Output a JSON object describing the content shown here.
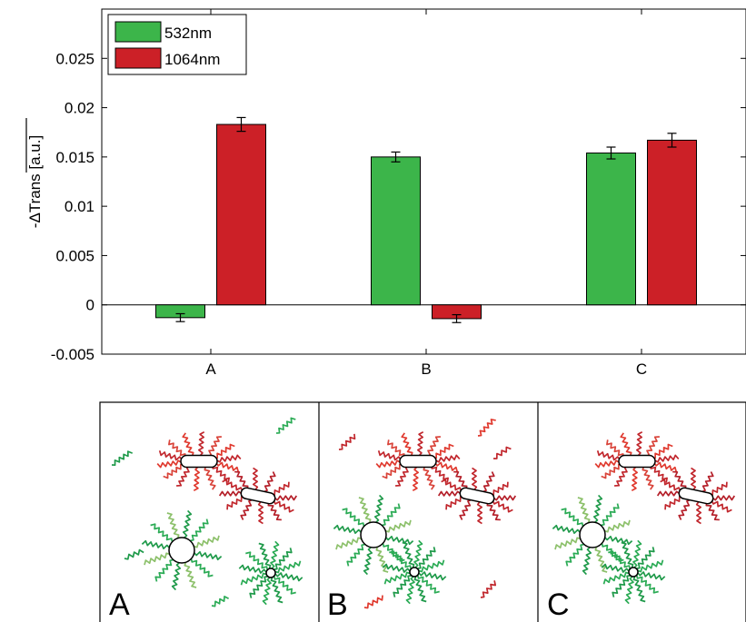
{
  "chart_data": {
    "type": "bar",
    "categories": [
      "A",
      "B",
      "C"
    ],
    "series": [
      {
        "name": "532nm",
        "color": "#3cb54a",
        "values": [
          -0.0013,
          0.015,
          0.0154
        ],
        "errors": [
          0.0004,
          0.0005,
          0.0006
        ]
      },
      {
        "name": "1064nm",
        "color": "#cc2027",
        "values": [
          0.0183,
          -0.0014,
          0.0167
        ],
        "errors": [
          0.0007,
          0.0004,
          0.0007
        ]
      }
    ],
    "ylabel": "-ΔTrans [a.u.]",
    "ylim": [
      -0.005,
      0.03
    ],
    "yticks": [
      "-0.005",
      "0",
      "0.005",
      "0.01",
      "0.015",
      "0.02",
      "0.025"
    ],
    "grid": false,
    "legend_position": "top-left"
  },
  "panels": [
    {
      "label": "A",
      "spheres": "green",
      "rods": "red",
      "free_ligands": "green"
    },
    {
      "label": "B",
      "spheres": "green",
      "rods": "red",
      "free_ligands": "red"
    },
    {
      "label": "C",
      "spheres": "green",
      "rods": "red",
      "free_ligands": "none"
    }
  ]
}
